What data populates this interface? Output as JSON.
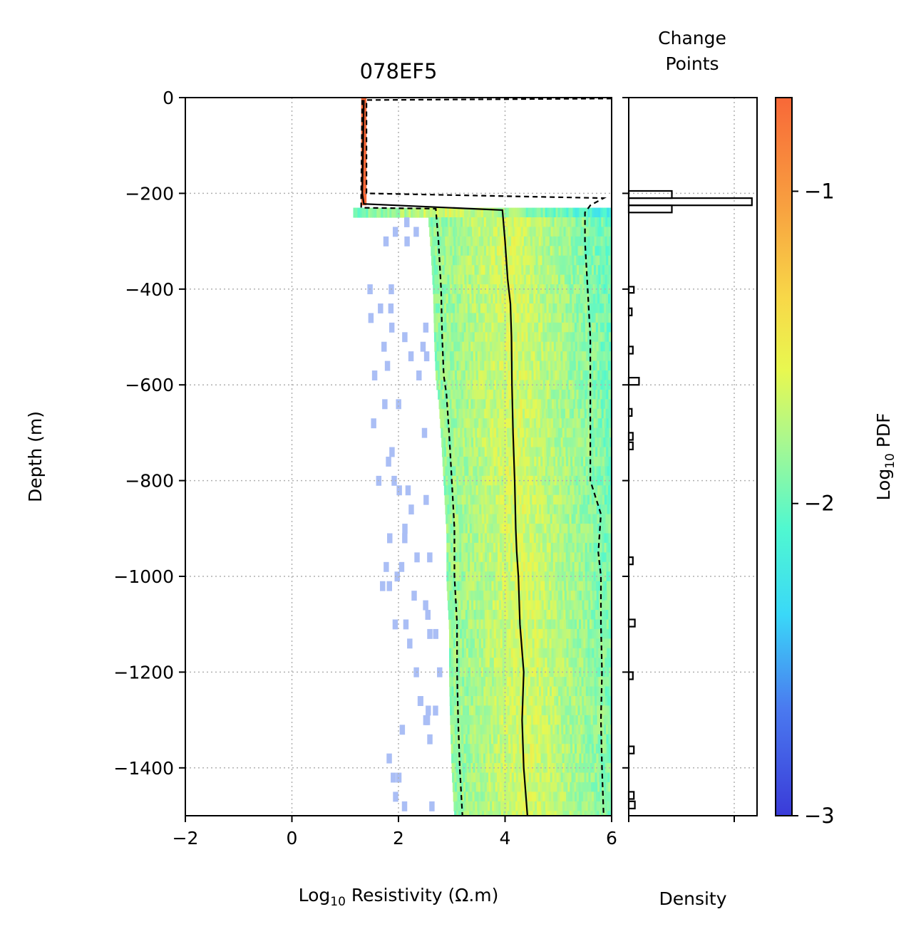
{
  "chart_data": [
    {
      "type": "heatmap",
      "title": "078EF5",
      "xlabel_prefix": "Log",
      "xlabel_sub": "10",
      "xlabel_suffix": " Resistivity (Ω.m)",
      "ylabel": "Depth (m)",
      "xlim": [
        -2,
        6
      ],
      "ylim": [
        -1500,
        0
      ],
      "xticks": [
        -2,
        0,
        2,
        4,
        6
      ],
      "xtick_labels": [
        "−2",
        "0",
        "2",
        "4",
        "6"
      ],
      "yticks": [
        0,
        -200,
        -400,
        -600,
        -800,
        -1000,
        -1200,
        -1400
      ],
      "ytick_labels": [
        "0",
        "−200",
        "−400",
        "−600",
        "−800",
        "−1000",
        "−1200",
        "−1400"
      ],
      "grid": true,
      "top_layer": {
        "depth_range": [
          0,
          -225
        ],
        "log10_resistivity": [
          1.3,
          1.4
        ],
        "log10_pdf": -0.7
      },
      "median_profile": [
        [
          1.35,
          -5
        ],
        [
          1.32,
          -200
        ],
        [
          1.35,
          -222
        ],
        [
          3.95,
          -235
        ],
        [
          4.0,
          -300
        ],
        [
          4.05,
          -380
        ],
        [
          4.1,
          -430
        ],
        [
          4.12,
          -500
        ],
        [
          4.13,
          -600
        ],
        [
          4.15,
          -700
        ],
        [
          4.18,
          -800
        ],
        [
          4.2,
          -900
        ],
        [
          4.22,
          -950
        ],
        [
          4.25,
          -1000
        ],
        [
          4.28,
          -1100
        ],
        [
          4.35,
          -1200
        ],
        [
          4.32,
          -1300
        ],
        [
          4.35,
          -1400
        ],
        [
          4.42,
          -1500
        ]
      ],
      "lower_percentile_profile": [
        [
          1.32,
          -5
        ],
        [
          1.3,
          -205
        ],
        [
          1.3,
          -230
        ],
        [
          2.7,
          -232
        ],
        [
          2.75,
          -300
        ],
        [
          2.8,
          -400
        ],
        [
          2.82,
          -500
        ],
        [
          2.85,
          -580
        ],
        [
          2.9,
          -620
        ],
        [
          2.95,
          -700
        ],
        [
          3.0,
          -800
        ],
        [
          3.05,
          -900
        ],
        [
          3.05,
          -1000
        ],
        [
          3.1,
          -1100
        ],
        [
          3.1,
          -1200
        ],
        [
          3.12,
          -1300
        ],
        [
          3.15,
          -1400
        ],
        [
          3.2,
          -1500
        ]
      ],
      "upper_percentile_profile": [
        [
          6.0,
          -2
        ],
        [
          1.4,
          -5
        ],
        [
          1.4,
          -200
        ],
        [
          5.85,
          -210
        ],
        [
          5.6,
          -225
        ],
        [
          5.5,
          -240
        ],
        [
          5.5,
          -300
        ],
        [
          5.55,
          -400
        ],
        [
          5.6,
          -500
        ],
        [
          5.6,
          -600
        ],
        [
          5.6,
          -800
        ],
        [
          5.8,
          -870
        ],
        [
          5.75,
          -950
        ],
        [
          5.8,
          -1000
        ],
        [
          5.8,
          -1100
        ],
        [
          5.82,
          -1200
        ],
        [
          5.8,
          -1300
        ],
        [
          5.82,
          -1400
        ],
        [
          5.85,
          -1500
        ]
      ]
    },
    {
      "type": "bar",
      "title": "Change\nPoints",
      "title_lines": [
        "Change",
        "Points"
      ],
      "xlabel": "Density",
      "orientation": "horizontal",
      "bins": [
        {
          "depth": [
            -195,
            -210
          ],
          "value": 0.042
        },
        {
          "depth": [
            -210,
            -225
          ],
          "value": 0.12
        },
        {
          "depth": [
            -225,
            -240
          ],
          "value": 0.042
        },
        {
          "depth": [
            -395,
            -408
          ],
          "value": 0.005
        },
        {
          "depth": [
            -440,
            -455
          ],
          "value": 0.003
        },
        {
          "depth": [
            -520,
            -535
          ],
          "value": 0.004
        },
        {
          "depth": [
            -585,
            -600
          ],
          "value": 0.01
        },
        {
          "depth": [
            -650,
            -665
          ],
          "value": 0.003
        },
        {
          "depth": [
            -700,
            -715
          ],
          "value": 0.004
        },
        {
          "depth": [
            -720,
            -735
          ],
          "value": 0.004
        },
        {
          "depth": [
            -960,
            -975
          ],
          "value": 0.004
        },
        {
          "depth": [
            -1090,
            -1105
          ],
          "value": 0.006
        },
        {
          "depth": [
            -1200,
            -1215
          ],
          "value": 0.004
        },
        {
          "depth": [
            -1355,
            -1370
          ],
          "value": 0.005
        },
        {
          "depth": [
            -1450,
            -1465
          ],
          "value": 0.005
        },
        {
          "depth": [
            -1470,
            -1485
          ],
          "value": 0.006
        }
      ]
    },
    {
      "type": "colorbar",
      "label_prefix": "Log",
      "label_sub": "10",
      "label_suffix": " PDF",
      "range": [
        -3,
        -0.7
      ],
      "ticks": [
        -1,
        -2,
        -3
      ],
      "tick_labels": [
        "−1",
        "−2",
        "−3"
      ],
      "colormap": "jet"
    }
  ]
}
